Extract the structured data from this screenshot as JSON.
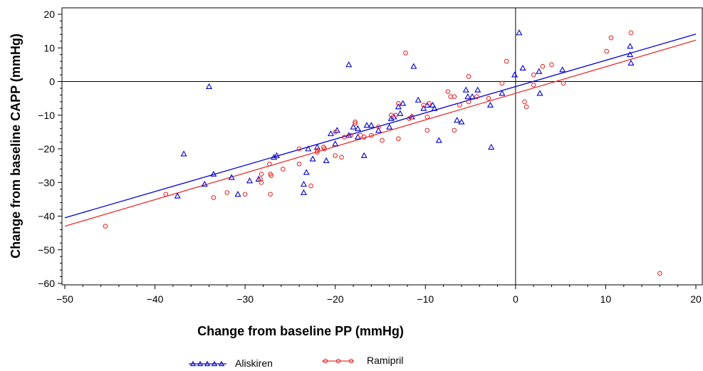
{
  "chart_data": {
    "type": "scatter",
    "title": "",
    "xlabel": "Change from baseline PP (mmHg)",
    "ylabel": "Change from baseline CAPP (mmHg)",
    "xlim": [
      -50,
      20
    ],
    "ylim": [
      -60,
      20
    ],
    "xticks": [
      -50,
      -40,
      -30,
      -20,
      -10,
      0,
      10,
      20
    ],
    "yticks": [
      -60,
      -50,
      -40,
      -30,
      -20,
      -10,
      0,
      10,
      20
    ],
    "xtick_labels": [
      "−50",
      "−40",
      "−30",
      "−20",
      "−10",
      "0",
      "10",
      "20"
    ],
    "ytick_labels": [
      "−60",
      "−50",
      "−40",
      "−30",
      "−20",
      "−10",
      "0",
      "10",
      "20"
    ],
    "reference_lines": {
      "x": 0,
      "y": 0
    },
    "grid": false,
    "legend_position": "bottom",
    "series": [
      {
        "name": "Aliskiren",
        "color": "#0000cc",
        "marker": "triangle",
        "fit_line": {
          "slope": 0.78,
          "intercept": -1.5
        },
        "points": [
          [
            -37.5,
            -34
          ],
          [
            -36.8,
            -21.5
          ],
          [
            -34.5,
            -30.5
          ],
          [
            -34,
            -1.5
          ],
          [
            -33.5,
            -27.5
          ],
          [
            -31.5,
            -28.5
          ],
          [
            -30.8,
            -33.5
          ],
          [
            -29.5,
            -29.5
          ],
          [
            -28.5,
            -29
          ],
          [
            -26.8,
            -22.5
          ],
          [
            -26.5,
            -22
          ],
          [
            -23.5,
            -30.5
          ],
          [
            -23.5,
            -33
          ],
          [
            -23.2,
            -27
          ],
          [
            -23,
            -20
          ],
          [
            -22.5,
            -23
          ],
          [
            -22,
            -19.5
          ],
          [
            -21,
            -23.5
          ],
          [
            -20.5,
            -15.5
          ],
          [
            -20,
            -18.5
          ],
          [
            -19.8,
            -14.5
          ],
          [
            -18.5,
            -16
          ],
          [
            -18.5,
            5
          ],
          [
            -18,
            -13.5
          ],
          [
            -17.5,
            -14
          ],
          [
            -17.5,
            -16.5
          ],
          [
            -16.8,
            -22
          ],
          [
            -16.5,
            -13
          ],
          [
            -16,
            -13
          ],
          [
            -15.2,
            -14.5
          ],
          [
            -14,
            -13.5
          ],
          [
            -13.8,
            -11
          ],
          [
            -13.5,
            -10.5
          ],
          [
            -13,
            -7.5
          ],
          [
            -12.8,
            -9.5
          ],
          [
            -12.5,
            -6.5
          ],
          [
            -11.5,
            -10.5
          ],
          [
            -11.3,
            4.5
          ],
          [
            -10.8,
            -5.5
          ],
          [
            -10.2,
            -8
          ],
          [
            -9.8,
            -7
          ],
          [
            -9.2,
            -7
          ],
          [
            -9,
            -8
          ],
          [
            -8.5,
            -17.5
          ],
          [
            -6.5,
            -11.5
          ],
          [
            -6,
            -12
          ],
          [
            -5.5,
            -2.5
          ],
          [
            -5.3,
            -4.5
          ],
          [
            -4.8,
            -4.5
          ],
          [
            -4.2,
            -2.5
          ],
          [
            -2.8,
            -7
          ],
          [
            -2.7,
            -19.5
          ],
          [
            -1.5,
            -3.5
          ],
          [
            -0.1,
            2
          ],
          [
            0.4,
            14.5
          ],
          [
            0.8,
            4
          ],
          [
            2.6,
            3
          ],
          [
            2.7,
            -3.5
          ],
          [
            5.2,
            3.5
          ],
          [
            12.7,
            10.5
          ],
          [
            12.7,
            8
          ],
          [
            12.8,
            5.5
          ]
        ]
      },
      {
        "name": "Ramipril",
        "color": "#e83030",
        "marker": "circle",
        "fit_line": {
          "slope": 0.79,
          "intercept": -3.5
        },
        "points": [
          [
            -45.5,
            -43
          ],
          [
            -38.8,
            -33.5
          ],
          [
            -33.5,
            -34.5
          ],
          [
            -32,
            -33
          ],
          [
            -30,
            -33.5
          ],
          [
            -28.3,
            -29
          ],
          [
            -28.2,
            -27.5
          ],
          [
            -28.2,
            -30
          ],
          [
            -27.3,
            -24.5
          ],
          [
            -27.2,
            -27.5
          ],
          [
            -27.2,
            -33.5
          ],
          [
            -27.1,
            -28
          ],
          [
            -25.8,
            -26
          ],
          [
            -24,
            -24.5
          ],
          [
            -24,
            -20
          ],
          [
            -22.7,
            -31
          ],
          [
            -22,
            -20.5
          ],
          [
            -22,
            -21
          ],
          [
            -21.3,
            -19.5
          ],
          [
            -21.2,
            -20
          ],
          [
            -20,
            -15
          ],
          [
            -20,
            -22
          ],
          [
            -19.3,
            -22.5
          ],
          [
            -19,
            -16.5
          ],
          [
            -18.3,
            -16
          ],
          [
            -17.8,
            -12
          ],
          [
            -17.8,
            -12.5
          ],
          [
            -17.2,
            -16
          ],
          [
            -16.8,
            -16.5
          ],
          [
            -16,
            -16
          ],
          [
            -15.2,
            -13.5
          ],
          [
            -14.8,
            -17.5
          ],
          [
            -13.8,
            -10
          ],
          [
            -13.3,
            -10
          ],
          [
            -13,
            -6.5
          ],
          [
            -13,
            -17
          ],
          [
            -12.2,
            8.5
          ],
          [
            -11.8,
            -11
          ],
          [
            -11.5,
            -10.5
          ],
          [
            -10.2,
            -7
          ],
          [
            -9.8,
            -10.5
          ],
          [
            -9.8,
            -14.5
          ],
          [
            -9.6,
            -6.5
          ],
          [
            -7.5,
            -3
          ],
          [
            -7.2,
            -4.5
          ],
          [
            -6.8,
            -4.5
          ],
          [
            -6.8,
            -14.5
          ],
          [
            -6.2,
            -7
          ],
          [
            -5.2,
            -6
          ],
          [
            -5.2,
            1.5
          ],
          [
            -4.3,
            -4.5
          ],
          [
            -3,
            -5
          ],
          [
            -1.5,
            -0.5
          ],
          [
            -1,
            6
          ],
          [
            1,
            -6
          ],
          [
            1.2,
            -7.5
          ],
          [
            2,
            -1
          ],
          [
            2,
            2
          ],
          [
            3,
            4.5
          ],
          [
            4,
            5
          ],
          [
            5.3,
            -0.5
          ],
          [
            10.1,
            9
          ],
          [
            10.6,
            13
          ],
          [
            12.8,
            14.5
          ],
          [
            16,
            -57
          ]
        ]
      }
    ]
  },
  "legend": {
    "items": [
      {
        "label": "Aliskiren",
        "color": "#0000cc",
        "marker": "triangle"
      },
      {
        "label": "Ramipril",
        "color": "#e83030",
        "marker": "circle"
      }
    ]
  }
}
